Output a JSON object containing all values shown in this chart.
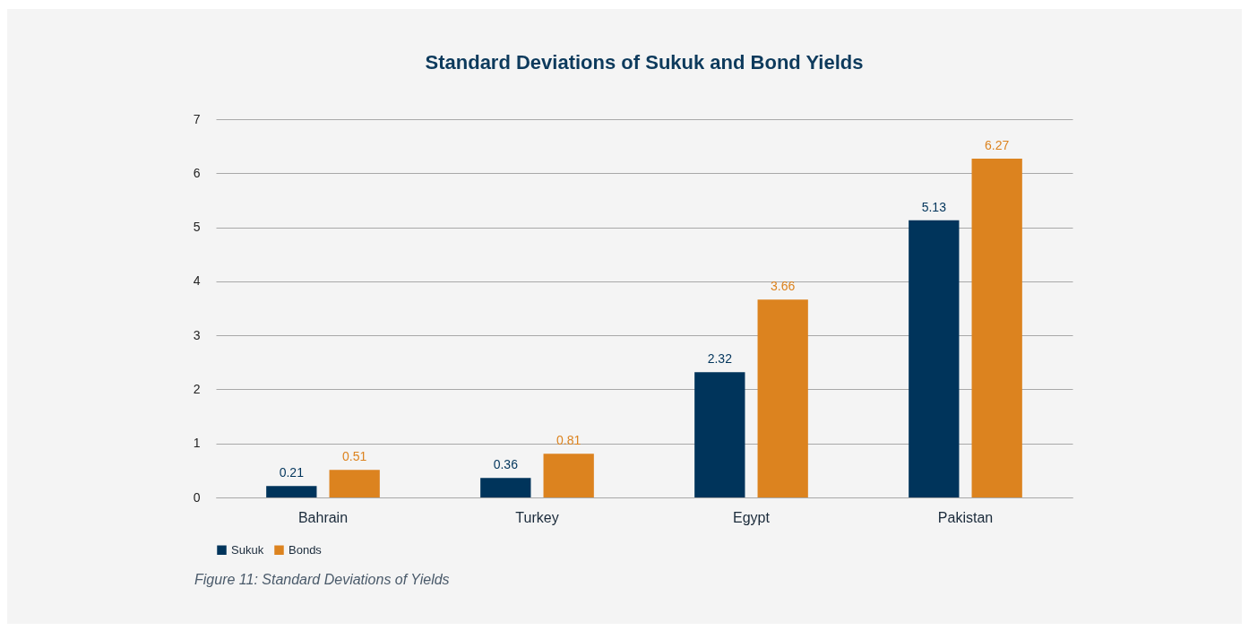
{
  "chart_data": {
    "type": "bar",
    "title": "Standard Deviations of Sukuk and Bond Yields",
    "categories": [
      "Bahrain",
      "Turkey",
      "Egypt",
      "Pakistan"
    ],
    "series": [
      {
        "name": "Sukuk",
        "color": "#00345b",
        "values": [
          0.21,
          0.36,
          2.32,
          5.13
        ]
      },
      {
        "name": "Bonds",
        "color": "#dc831f",
        "values": [
          0.51,
          0.81,
          3.66,
          6.27
        ]
      }
    ],
    "ylim": [
      0,
      7
    ],
    "yticks": [
      0,
      1,
      2,
      3,
      4,
      5,
      6,
      7
    ],
    "grid": "y",
    "legend": "bottom",
    "data_labels": true,
    "annotations": [
      "Figure 11: Standard Deviations of Yields"
    ]
  }
}
